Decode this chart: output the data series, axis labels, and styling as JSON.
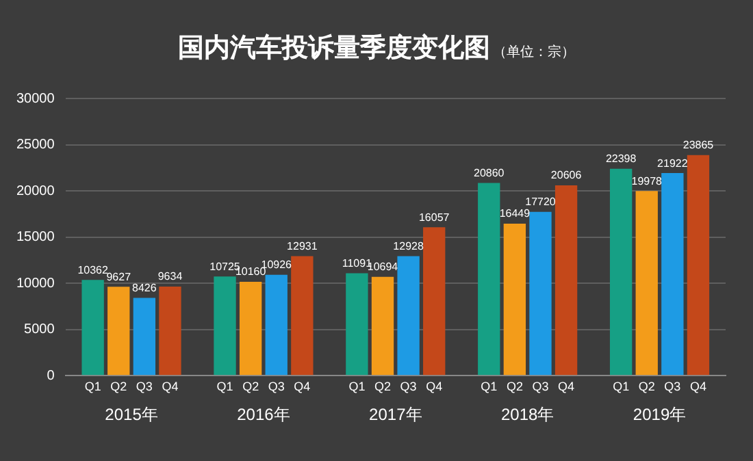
{
  "chart_data": {
    "type": "bar",
    "title": "国内汽车投诉量季度变化图",
    "subtitle": "（单位：宗）",
    "categories": [
      "2015年",
      "2016年",
      "2017年",
      "2018年",
      "2019年"
    ],
    "series": [
      {
        "name": "Q1",
        "color": "#16a085",
        "values": [
          10362,
          10725,
          11091,
          20860,
          22398
        ]
      },
      {
        "name": "Q2",
        "color": "#f39c1a",
        "values": [
          9627,
          10160,
          10694,
          16449,
          19978
        ]
      },
      {
        "name": "Q3",
        "color": "#1e9be4",
        "values": [
          8426,
          10926,
          12928,
          17720,
          21922
        ]
      },
      {
        "name": "Q4",
        "color": "#c4481a",
        "values": [
          9634,
          12931,
          16057,
          20606,
          23865
        ]
      }
    ],
    "ylim": [
      0,
      30000
    ],
    "yticks": [
      0,
      5000,
      10000,
      15000,
      20000,
      25000,
      30000
    ],
    "grid": "y",
    "data_labels": true,
    "legend": false
  }
}
